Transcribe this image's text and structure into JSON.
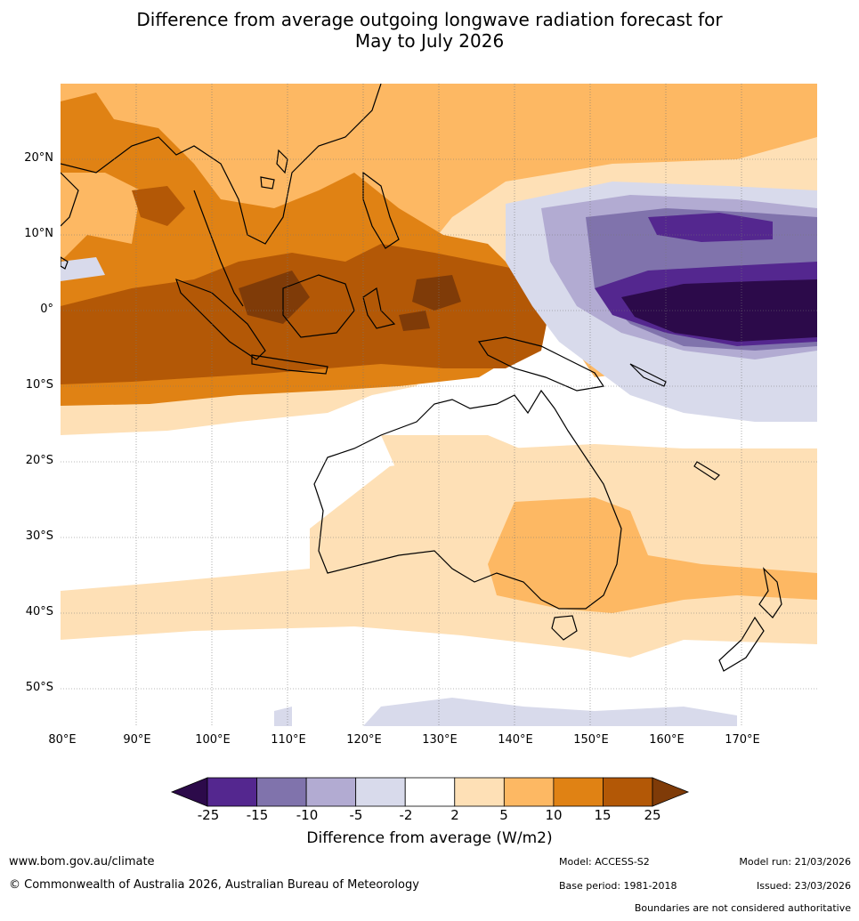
{
  "title": {
    "line1": "Difference from average outgoing longwave radiation forecast for",
    "line2": "May to July 2026"
  },
  "map": {
    "lat_labels": [
      "20°N",
      "10°N",
      "0°",
      "10°S",
      "20°S",
      "30°S",
      "40°S",
      "50°S"
    ],
    "lon_labels": [
      "80°E",
      "90°E",
      "100°E",
      "110°E",
      "120°E",
      "130°E",
      "140°E",
      "150°E",
      "160°E",
      "170°E"
    ]
  },
  "colorbar": {
    "ticks": [
      "-25",
      "-15",
      "-10",
      "-5",
      "-2",
      "2",
      "5",
      "10",
      "15",
      "25"
    ],
    "colors": [
      "#2c0a4a",
      "#54278f",
      "#8073ac",
      "#b2abd2",
      "#d8daeb",
      "#ffffff",
      "#fee0b6",
      "#fdb863",
      "#e08214",
      "#b35806",
      "#7f3b08"
    ],
    "label": "Difference from average (W/m2)"
  },
  "footer": {
    "website": "www.bom.gov.au/climate",
    "copyright": "© Commonwealth of Australia 2026, Australian Bureau of Meteorology",
    "model": "Model: ACCESS-S2",
    "base_period": "Base period: 1981-2018",
    "model_run": "Model run: 21/03/2026",
    "issued": "Issued: 23/03/2026",
    "disclaimer": "Boundaries are not considered authoritative"
  }
}
